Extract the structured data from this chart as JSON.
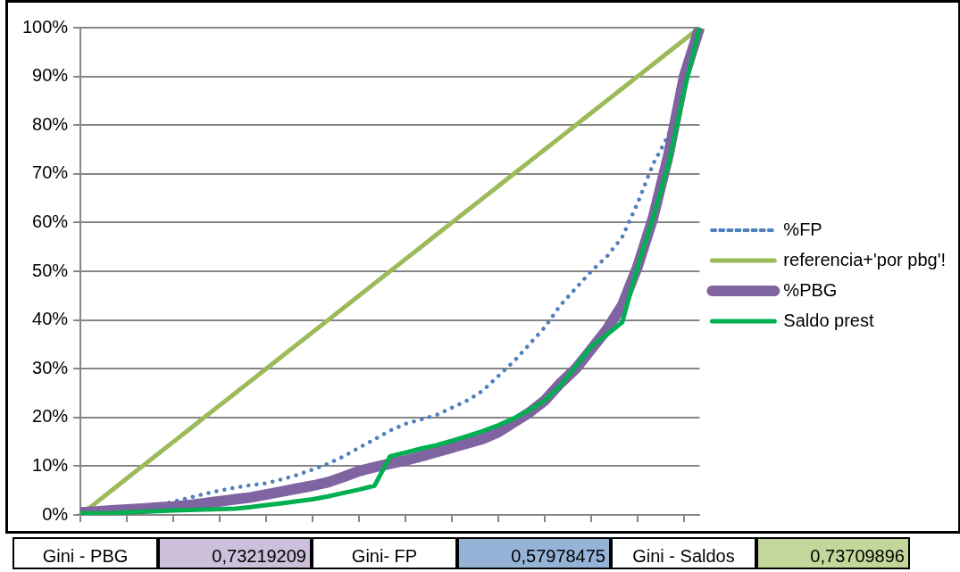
{
  "chart_data": {
    "type": "line",
    "categories": [
      null,
      null,
      null,
      null,
      null,
      null,
      null,
      null,
      null,
      null,
      null,
      null,
      null,
      null,
      null,
      null,
      null,
      null,
      null,
      null,
      null,
      null,
      null,
      null,
      null,
      null,
      null,
      null,
      null,
      null,
      null,
      null,
      null,
      null,
      null,
      null,
      null,
      null,
      null,
      null,
      null
    ],
    "series": [
      {
        "name": "%FP",
        "color": "#4f81bd",
        "line_style": "dotted",
        "values": [
          0,
          0.3,
          0.7,
          1.1,
          1.6,
          2.1,
          2.7,
          3.5,
          4.3,
          5,
          5.6,
          6.1,
          6.5,
          7.3,
          8.2,
          9.3,
          10.5,
          12,
          13.8,
          15.5,
          17.3,
          18.7,
          19.6,
          20.5,
          22,
          23.5,
          25.5,
          28.5,
          31.5,
          35,
          38.5,
          43,
          46.5,
          50,
          53,
          57,
          64,
          72,
          78,
          88,
          100
        ]
      },
      {
        "name": "referencia+'por pbg'!",
        "color": "#9bbb59",
        "line_style": "solid",
        "values": [
          0,
          2.5,
          5,
          7.5,
          10,
          12.5,
          15,
          17.5,
          20,
          22.5,
          25,
          27.5,
          30,
          32.5,
          35,
          37.5,
          40,
          42.5,
          45,
          47.5,
          50,
          52.5,
          55,
          57.5,
          60,
          62.5,
          65,
          67.5,
          70,
          72.5,
          75,
          77.5,
          80,
          82.5,
          85,
          87.5,
          90,
          92.5,
          95,
          97.5,
          100
        ]
      },
      {
        "name": "%PBG",
        "color": "#8064a2",
        "line_style": "solid",
        "values": [
          0.5,
          0.7,
          0.9,
          1.1,
          1.3,
          1.5,
          1.7,
          2,
          2.4,
          2.8,
          3.2,
          3.6,
          4.2,
          4.8,
          5.4,
          6,
          6.7,
          7.8,
          9,
          9.8,
          10.5,
          11.2,
          12,
          12.9,
          13.8,
          14.7,
          15.6,
          17,
          19,
          21,
          23.5,
          27,
          30,
          34,
          38,
          43,
          51,
          61,
          74,
          90,
          100
        ]
      },
      {
        "name": "Saldo prest",
        "color": "#00b050",
        "line_style": "solid",
        "values": [
          0.3,
          0.3,
          0.3,
          0.5,
          0.7,
          0.8,
          0.9,
          1,
          1.1,
          1.2,
          1.3,
          1.6,
          2,
          2.4,
          2.8,
          3.2,
          3.8,
          4.5,
          5.2,
          6,
          12,
          12.8,
          13.6,
          14.3,
          15.2,
          16.2,
          17.2,
          18.4,
          19.8,
          21.5,
          23.5,
          26.5,
          30.5,
          34.5,
          37,
          39.5,
          51,
          61,
          72,
          87,
          100
        ]
      }
    ],
    "ylim": [
      0,
      100
    ],
    "yticks": [
      {
        "value": 0,
        "label": "0%"
      },
      {
        "value": 10,
        "label": "10%"
      },
      {
        "value": 20,
        "label": "20%"
      },
      {
        "value": 30,
        "label": "30%"
      },
      {
        "value": 40,
        "label": "40%"
      },
      {
        "value": 50,
        "label": "50%"
      },
      {
        "value": 60,
        "label": "60%"
      },
      {
        "value": 70,
        "label": "70%"
      },
      {
        "value": 80,
        "label": "80%"
      },
      {
        "value": 90,
        "label": "90%"
      },
      {
        "value": 100,
        "label": "100%"
      }
    ],
    "grid": "y",
    "legend": "right",
    "marker": "none",
    "tick_labels": "y",
    "annotations": [
      "Gini - PBG",
      "0,73219209",
      "Gini- FP",
      "0,57978475",
      "Gini - Saldos",
      "0,73709896"
    ]
  }
}
